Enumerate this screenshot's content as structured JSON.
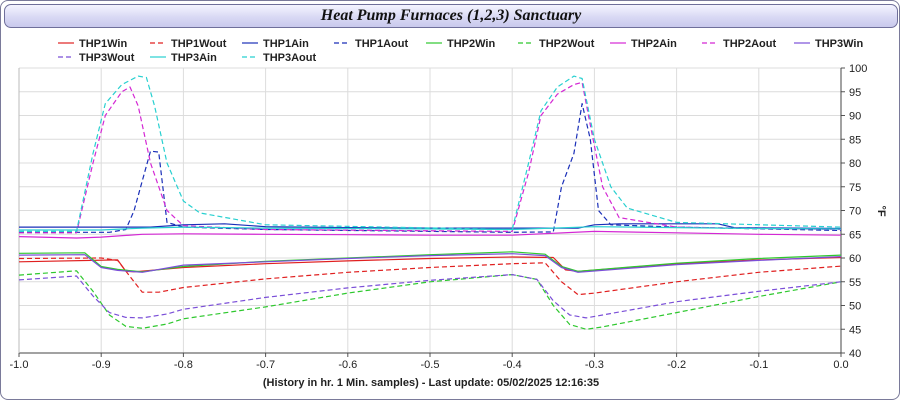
{
  "chart_data": {
    "type": "line",
    "title": "Heat Pump Furnaces (1,2,3) Sanctuary",
    "xlabel": "(History in hr. 1 Min. samples) - Last update: 05/02/2025 12:16:35",
    "ylabel": "°F",
    "xlim": [
      -1.0,
      0.0
    ],
    "ylim": [
      40,
      100
    ],
    "x_ticks": [
      "-1.0",
      "-0.9",
      "-0.8",
      "-0.7",
      "-0.6",
      "-0.5",
      "-0.4",
      "-0.3",
      "-0.2",
      "-0.1",
      "0.0"
    ],
    "y_ticks": [
      "40",
      "45",
      "50",
      "55",
      "60",
      "65",
      "70",
      "75",
      "80",
      "85",
      "90",
      "95",
      "100"
    ],
    "grid": true,
    "legend_position": "top",
    "series": [
      {
        "name": "THP1Win",
        "color": "#e02020",
        "dash": "solid",
        "points": [
          [
            -1.0,
            59.2
          ],
          [
            -0.88,
            59.6
          ],
          [
            -0.87,
            57.2
          ],
          [
            -0.86,
            57.1
          ],
          [
            -0.8,
            58.0
          ],
          [
            -0.7,
            58.8
          ],
          [
            -0.6,
            59.4
          ],
          [
            -0.5,
            59.9
          ],
          [
            -0.4,
            60.2
          ],
          [
            -0.35,
            60.1
          ],
          [
            -0.335,
            57.5
          ],
          [
            -0.32,
            57.2
          ],
          [
            -0.2,
            58.8
          ],
          [
            -0.1,
            59.6
          ],
          [
            0.0,
            60.1
          ]
        ]
      },
      {
        "name": "THP1Wout",
        "color": "#e02020",
        "dash": "dashed",
        "points": [
          [
            -1.0,
            59.9
          ],
          [
            -0.9,
            60.0
          ],
          [
            -0.88,
            59.5
          ],
          [
            -0.86,
            55.0
          ],
          [
            -0.85,
            52.8
          ],
          [
            -0.83,
            52.8
          ],
          [
            -0.8,
            53.8
          ],
          [
            -0.7,
            55.6
          ],
          [
            -0.6,
            57.0
          ],
          [
            -0.5,
            58.0
          ],
          [
            -0.4,
            58.8
          ],
          [
            -0.36,
            59.0
          ],
          [
            -0.34,
            55.0
          ],
          [
            -0.32,
            52.3
          ],
          [
            -0.3,
            52.6
          ],
          [
            -0.2,
            55.0
          ],
          [
            -0.1,
            57.0
          ],
          [
            0.0,
            58.3
          ]
        ]
      },
      {
        "name": "THP1Ain",
        "color": "#1a2fb8",
        "dash": "solid",
        "points": [
          [
            -1.0,
            66.5
          ],
          [
            -0.84,
            66.5
          ],
          [
            -0.8,
            67.0
          ],
          [
            -0.75,
            67.2
          ],
          [
            -0.7,
            66.6
          ],
          [
            -0.6,
            66.4
          ],
          [
            -0.5,
            66.3
          ],
          [
            -0.32,
            66.3
          ],
          [
            -0.3,
            67.0
          ],
          [
            -0.27,
            67.2
          ],
          [
            -0.15,
            67.2
          ],
          [
            -0.13,
            66.4
          ],
          [
            0.0,
            66.2
          ]
        ]
      },
      {
        "name": "THP1Aout",
        "color": "#1a2fb8",
        "dash": "dashed",
        "points": [
          [
            -1.0,
            65.4
          ],
          [
            -0.89,
            65.4
          ],
          [
            -0.87,
            66.0
          ],
          [
            -0.86,
            70.0
          ],
          [
            -0.84,
            82.5
          ],
          [
            -0.83,
            82.3
          ],
          [
            -0.82,
            67.5
          ],
          [
            -0.8,
            66.5
          ],
          [
            -0.7,
            66.0
          ],
          [
            -0.4,
            65.4
          ],
          [
            -0.35,
            65.5
          ],
          [
            -0.34,
            75.0
          ],
          [
            -0.325,
            82.0
          ],
          [
            -0.315,
            92.5
          ],
          [
            -0.305,
            85.0
          ],
          [
            -0.295,
            70.0
          ],
          [
            -0.28,
            67.0
          ],
          [
            -0.2,
            66.5
          ],
          [
            0.0,
            65.8
          ]
        ]
      },
      {
        "name": "THP2Win",
        "color": "#2ec82e",
        "dash": "solid",
        "points": [
          [
            -1.0,
            61.0
          ],
          [
            -0.92,
            61.1
          ],
          [
            -0.9,
            58.2
          ],
          [
            -0.88,
            57.6
          ],
          [
            -0.85,
            57.1
          ],
          [
            -0.8,
            58.2
          ],
          [
            -0.7,
            59.3
          ],
          [
            -0.6,
            60.0
          ],
          [
            -0.5,
            60.7
          ],
          [
            -0.4,
            61.3
          ],
          [
            -0.36,
            60.8
          ],
          [
            -0.34,
            58.2
          ],
          [
            -0.32,
            57.2
          ],
          [
            -0.2,
            58.9
          ],
          [
            -0.1,
            59.9
          ],
          [
            0.0,
            60.6
          ]
        ]
      },
      {
        "name": "THP2Wout",
        "color": "#2ec82e",
        "dash": "dashed",
        "points": [
          [
            -1.0,
            56.4
          ],
          [
            -0.93,
            57.3
          ],
          [
            -0.91,
            53.0
          ],
          [
            -0.89,
            48.0
          ],
          [
            -0.87,
            45.6
          ],
          [
            -0.85,
            45.2
          ],
          [
            -0.82,
            46.1
          ],
          [
            -0.8,
            47.2
          ],
          [
            -0.7,
            49.7
          ],
          [
            -0.6,
            52.6
          ],
          [
            -0.5,
            55.0
          ],
          [
            -0.4,
            56.5
          ],
          [
            -0.37,
            55.5
          ],
          [
            -0.35,
            50.0
          ],
          [
            -0.33,
            46.0
          ],
          [
            -0.31,
            45.0
          ],
          [
            -0.29,
            45.5
          ],
          [
            -0.2,
            48.5
          ],
          [
            -0.1,
            51.9
          ],
          [
            0.0,
            55.0
          ]
        ]
      },
      {
        "name": "THP2Ain",
        "color": "#d428d4",
        "dash": "solid",
        "points": [
          [
            -1.0,
            64.5
          ],
          [
            -0.93,
            64.2
          ],
          [
            -0.9,
            64.4
          ],
          [
            -0.85,
            65.0
          ],
          [
            -0.8,
            65.1
          ],
          [
            -0.7,
            65.0
          ],
          [
            -0.6,
            64.9
          ],
          [
            -0.5,
            64.8
          ],
          [
            -0.4,
            64.8
          ],
          [
            -0.3,
            65.6
          ],
          [
            -0.2,
            65.3
          ],
          [
            -0.1,
            65.0
          ],
          [
            0.0,
            64.8
          ]
        ]
      },
      {
        "name": "THP2Aout",
        "color": "#d428d4",
        "dash": "dashed",
        "points": [
          [
            -1.0,
            65.3
          ],
          [
            -0.93,
            65.3
          ],
          [
            -0.91,
            80.0
          ],
          [
            -0.895,
            90.0
          ],
          [
            -0.875,
            95.0
          ],
          [
            -0.865,
            96.0
          ],
          [
            -0.855,
            92.0
          ],
          [
            -0.84,
            80.0
          ],
          [
            -0.82,
            70.0
          ],
          [
            -0.8,
            66.8
          ],
          [
            -0.7,
            66.0
          ],
          [
            -0.4,
            65.6
          ],
          [
            -0.38,
            78.0
          ],
          [
            -0.365,
            90.0
          ],
          [
            -0.345,
            94.5
          ],
          [
            -0.325,
            96.5
          ],
          [
            -0.315,
            97.0
          ],
          [
            -0.305,
            88.0
          ],
          [
            -0.29,
            75.0
          ],
          [
            -0.27,
            68.5
          ],
          [
            -0.2,
            66.5
          ],
          [
            0.0,
            66.0
          ]
        ]
      },
      {
        "name": "THP3Win",
        "color": "#7b4fd8",
        "dash": "solid",
        "points": [
          [
            -1.0,
            60.6
          ],
          [
            -0.92,
            60.7
          ],
          [
            -0.9,
            58.0
          ],
          [
            -0.88,
            57.4
          ],
          [
            -0.85,
            57.0
          ],
          [
            -0.8,
            58.5
          ],
          [
            -0.7,
            59.2
          ],
          [
            -0.6,
            59.9
          ],
          [
            -0.5,
            60.5
          ],
          [
            -0.4,
            60.9
          ],
          [
            -0.36,
            60.5
          ],
          [
            -0.34,
            58.0
          ],
          [
            -0.32,
            57.0
          ],
          [
            -0.2,
            58.6
          ],
          [
            -0.1,
            59.5
          ],
          [
            0.0,
            60.3
          ]
        ]
      },
      {
        "name": "THP3Wout",
        "color": "#7b4fd8",
        "dash": "dashed",
        "points": [
          [
            -1.0,
            55.4
          ],
          [
            -0.93,
            56.2
          ],
          [
            -0.91,
            52.0
          ],
          [
            -0.89,
            48.5
          ],
          [
            -0.87,
            47.5
          ],
          [
            -0.85,
            47.4
          ],
          [
            -0.82,
            48.2
          ],
          [
            -0.8,
            49.2
          ],
          [
            -0.7,
            51.7
          ],
          [
            -0.6,
            53.7
          ],
          [
            -0.5,
            55.3
          ],
          [
            -0.4,
            56.5
          ],
          [
            -0.37,
            55.5
          ],
          [
            -0.35,
            51.0
          ],
          [
            -0.33,
            48.0
          ],
          [
            -0.31,
            47.4
          ],
          [
            -0.29,
            48.0
          ],
          [
            -0.2,
            50.8
          ],
          [
            -0.1,
            53.0
          ],
          [
            0.0,
            55.0
          ]
        ]
      },
      {
        "name": "THP3Ain",
        "color": "#28d0d0",
        "dash": "solid",
        "points": [
          [
            -1.0,
            65.9
          ],
          [
            -0.9,
            65.9
          ],
          [
            -0.85,
            66.3
          ],
          [
            -0.8,
            66.5
          ],
          [
            -0.7,
            66.3
          ],
          [
            -0.6,
            66.2
          ],
          [
            -0.4,
            66.0
          ],
          [
            -0.3,
            66.6
          ],
          [
            -0.2,
            66.4
          ],
          [
            -0.1,
            66.2
          ],
          [
            0.0,
            66.1
          ]
        ]
      },
      {
        "name": "THP3Aout",
        "color": "#28d0d0",
        "dash": "dashed",
        "points": [
          [
            -1.0,
            65.6
          ],
          [
            -0.93,
            65.6
          ],
          [
            -0.91,
            82.0
          ],
          [
            -0.895,
            92.5
          ],
          [
            -0.875,
            96.5
          ],
          [
            -0.855,
            98.3
          ],
          [
            -0.845,
            98.0
          ],
          [
            -0.835,
            92.0
          ],
          [
            -0.82,
            80.0
          ],
          [
            -0.8,
            72.0
          ],
          [
            -0.78,
            69.5
          ],
          [
            -0.7,
            67.0
          ],
          [
            -0.4,
            66.0
          ],
          [
            -0.38,
            80.0
          ],
          [
            -0.365,
            91.0
          ],
          [
            -0.345,
            96.0
          ],
          [
            -0.325,
            98.3
          ],
          [
            -0.315,
            97.8
          ],
          [
            -0.3,
            85.0
          ],
          [
            -0.28,
            75.0
          ],
          [
            -0.26,
            70.5
          ],
          [
            -0.2,
            67.5
          ],
          [
            0.0,
            66.5
          ]
        ]
      }
    ]
  }
}
